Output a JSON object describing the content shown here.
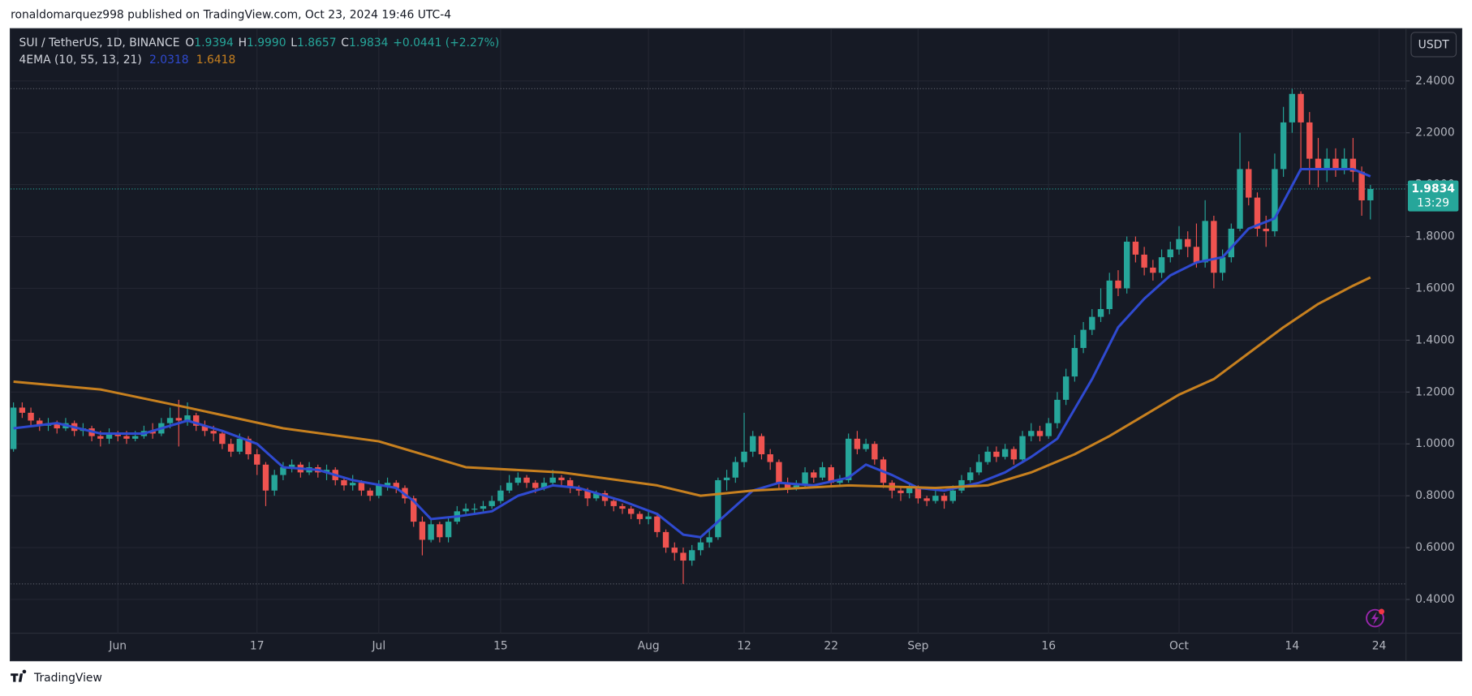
{
  "header": {
    "published": "ronaldomarquez998 published on TradingView.com, Oct 23, 2024 19:46 UTC-4"
  },
  "footer": {
    "brand": "TradingView"
  },
  "chart_data": {
    "type": "candlestick",
    "symbol": "SUI / TetherUS, 1D, BINANCE",
    "ohlc_legend": [
      {
        "key": "O",
        "value": "1.9394"
      },
      {
        "key": "H",
        "value": "1.9990"
      },
      {
        "key": "L",
        "value": "1.8657"
      },
      {
        "key": "C",
        "value": "1.9834"
      }
    ],
    "change": "+0.0441 (+2.27%)",
    "indicator": "4EMA (10, 55, 13, 21)",
    "currency": "USDT",
    "countdown": "13:29",
    "up_color": "#26a69a",
    "down_color": "#ef5350",
    "grid": true,
    "ylim": [
      0.27,
      2.6
    ],
    "yticks": [
      {
        "value": 0.4,
        "label": "0.4000"
      },
      {
        "value": 0.6,
        "label": "0.6000"
      },
      {
        "value": 0.8,
        "label": "0.8000"
      },
      {
        "value": 1.0,
        "label": "1.0000"
      },
      {
        "value": 1.2,
        "label": "1.2000"
      },
      {
        "value": 1.4,
        "label": "1.4000"
      },
      {
        "value": 1.6,
        "label": "1.6000"
      },
      {
        "value": 1.8,
        "label": "1.8000"
      },
      {
        "value": 2.0,
        "label": "2.0000"
      },
      {
        "value": 2.2,
        "label": "2.2000"
      },
      {
        "value": 2.4,
        "label": "2.4000"
      }
    ],
    "xticks": [
      {
        "value": "Jun 1",
        "label": "Jun"
      },
      {
        "value": "Jun 17",
        "label": "17"
      },
      {
        "value": "Jul 1",
        "label": "Jul"
      },
      {
        "value": "Jul 15",
        "label": "15"
      },
      {
        "value": "Aug 1",
        "label": "Aug"
      },
      {
        "value": "Aug 12",
        "label": "12"
      },
      {
        "value": "Aug 22",
        "label": "22"
      },
      {
        "value": "Sep 1",
        "label": "Sep"
      },
      {
        "value": "Sep 16",
        "label": "16"
      },
      {
        "value": "Oct 1",
        "label": "Oct"
      },
      {
        "value": "Oct 14",
        "label": "14"
      },
      {
        "value": "Oct 24",
        "label": "24"
      }
    ],
    "price_lines": [
      2.37,
      0.46
    ],
    "categories": [
      "May 20",
      "May 21",
      "May 22",
      "May 23",
      "May 24",
      "May 25",
      "May 26",
      "May 27",
      "May 28",
      "May 29",
      "May 30",
      "May 31",
      "Jun 1",
      "Jun 2",
      "Jun 3",
      "Jun 4",
      "Jun 5",
      "Jun 6",
      "Jun 7",
      "Jun 8",
      "Jun 9",
      "Jun 10",
      "Jun 11",
      "Jun 12",
      "Jun 13",
      "Jun 14",
      "Jun 15",
      "Jun 16",
      "Jun 17",
      "Jun 18",
      "Jun 19",
      "Jun 20",
      "Jun 21",
      "Jun 22",
      "Jun 23",
      "Jun 24",
      "Jun 25",
      "Jun 26",
      "Jun 27",
      "Jun 28",
      "Jun 29",
      "Jun 30",
      "Jul 1",
      "Jul 2",
      "Jul 3",
      "Jul 4",
      "Jul 5",
      "Jul 6",
      "Jul 7",
      "Jul 8",
      "Jul 9",
      "Jul 10",
      "Jul 11",
      "Jul 12",
      "Jul 13",
      "Jul 14",
      "Jul 15",
      "Jul 16",
      "Jul 17",
      "Jul 18",
      "Jul 19",
      "Jul 20",
      "Jul 21",
      "Jul 22",
      "Jul 23",
      "Jul 24",
      "Jul 25",
      "Jul 26",
      "Jul 27",
      "Jul 28",
      "Jul 29",
      "Jul 30",
      "Jul 31",
      "Aug 1",
      "Aug 2",
      "Aug 3",
      "Aug 4",
      "Aug 5",
      "Aug 6",
      "Aug 7",
      "Aug 8",
      "Aug 9",
      "Aug 10",
      "Aug 11",
      "Aug 12",
      "Aug 13",
      "Aug 14",
      "Aug 15",
      "Aug 16",
      "Aug 17",
      "Aug 18",
      "Aug 19",
      "Aug 20",
      "Aug 21",
      "Aug 22",
      "Aug 23",
      "Aug 24",
      "Aug 25",
      "Aug 26",
      "Aug 27",
      "Aug 28",
      "Aug 29",
      "Aug 30",
      "Aug 31",
      "Sep 1",
      "Sep 2",
      "Sep 3",
      "Sep 4",
      "Sep 5",
      "Sep 6",
      "Sep 7",
      "Sep 8",
      "Sep 9",
      "Sep 10",
      "Sep 11",
      "Sep 12",
      "Sep 13",
      "Sep 14",
      "Sep 15",
      "Sep 16",
      "Sep 17",
      "Sep 18",
      "Sep 19",
      "Sep 20",
      "Sep 21",
      "Sep 22",
      "Sep 23",
      "Sep 24",
      "Sep 25",
      "Sep 26",
      "Sep 27",
      "Sep 28",
      "Sep 29",
      "Sep 30",
      "Oct 1",
      "Oct 2",
      "Oct 3",
      "Oct 4",
      "Oct 5",
      "Oct 6",
      "Oct 7",
      "Oct 8",
      "Oct 9",
      "Oct 10",
      "Oct 11",
      "Oct 12",
      "Oct 13",
      "Oct 14",
      "Oct 15",
      "Oct 16",
      "Oct 17",
      "Oct 18",
      "Oct 19",
      "Oct 20",
      "Oct 21",
      "Oct 22",
      "Oct 23"
    ],
    "open": [
      0.98,
      1.14,
      1.12,
      1.09,
      1.07,
      1.08,
      1.06,
      1.08,
      1.05,
      1.06,
      1.03,
      1.02,
      1.04,
      1.03,
      1.02,
      1.03,
      1.05,
      1.04,
      1.08,
      1.1,
      1.09,
      1.11,
      1.07,
      1.05,
      1.04,
      1.0,
      0.97,
      1.02,
      0.96,
      0.92,
      0.82,
      0.88,
      0.91,
      0.92,
      0.89,
      0.91,
      0.89,
      0.9,
      0.86,
      0.84,
      0.85,
      0.82,
      0.8,
      0.84,
      0.85,
      0.83,
      0.79,
      0.7,
      0.63,
      0.69,
      0.64,
      0.7,
      0.74,
      0.75,
      0.75,
      0.76,
      0.78,
      0.82,
      0.85,
      0.87,
      0.85,
      0.83,
      0.85,
      0.87,
      0.86,
      0.83,
      0.82,
      0.79,
      0.81,
      0.78,
      0.76,
      0.75,
      0.73,
      0.71,
      0.72,
      0.66,
      0.6,
      0.58,
      0.55,
      0.59,
      0.62,
      0.64,
      0.86,
      0.87,
      0.93,
      0.97,
      1.03,
      0.96,
      0.93,
      0.85,
      0.83,
      0.84,
      0.89,
      0.87,
      0.91,
      0.85,
      0.86,
      1.02,
      0.98,
      1.0,
      0.94,
      0.85,
      0.82,
      0.81,
      0.83,
      0.79,
      0.78,
      0.8,
      0.78,
      0.82,
      0.86,
      0.89,
      0.93,
      0.97,
      0.95,
      0.98,
      0.94,
      1.03,
      1.05,
      1.03,
      1.08,
      1.17,
      1.26,
      1.37,
      1.44,
      1.49,
      1.52,
      1.63,
      1.6,
      1.78,
      1.73,
      1.68,
      1.66,
      1.72,
      1.75,
      1.79,
      1.76,
      1.7,
      1.86,
      1.66,
      1.72,
      1.83,
      2.06,
      1.95,
      1.83,
      1.82,
      2.06,
      2.24,
      2.35,
      2.24,
      2.1,
      2.06,
      2.1,
      2.06,
      2.1,
      2.05,
      1.9394
    ],
    "high": [
      1.16,
      1.16,
      1.14,
      1.1,
      1.1,
      1.09,
      1.1,
      1.09,
      1.08,
      1.07,
      1.05,
      1.06,
      1.05,
      1.05,
      1.05,
      1.07,
      1.08,
      1.1,
      1.14,
      1.17,
      1.16,
      1.12,
      1.09,
      1.07,
      1.05,
      1.02,
      1.04,
      1.03,
      0.98,
      0.93,
      0.9,
      0.93,
      0.94,
      0.93,
      0.93,
      0.92,
      0.92,
      0.91,
      0.87,
      0.88,
      0.86,
      0.83,
      0.86,
      0.87,
      0.86,
      0.84,
      0.8,
      0.72,
      0.71,
      0.7,
      0.72,
      0.76,
      0.77,
      0.77,
      0.78,
      0.8,
      0.84,
      0.88,
      0.89,
      0.88,
      0.86,
      0.87,
      0.9,
      0.88,
      0.87,
      0.84,
      0.83,
      0.82,
      0.82,
      0.79,
      0.77,
      0.76,
      0.74,
      0.74,
      0.73,
      0.67,
      0.62,
      0.6,
      0.61,
      0.64,
      0.67,
      0.87,
      0.9,
      0.95,
      1.12,
      1.05,
      1.04,
      0.98,
      0.94,
      0.87,
      0.86,
      0.91,
      0.9,
      0.93,
      0.92,
      0.88,
      1.04,
      1.05,
      1.02,
      1.01,
      0.95,
      0.86,
      0.83,
      0.85,
      0.84,
      0.8,
      0.82,
      0.81,
      0.84,
      0.88,
      0.91,
      0.96,
      0.99,
      0.99,
      1.0,
      0.99,
      1.05,
      1.08,
      1.07,
      1.1,
      1.2,
      1.29,
      1.42,
      1.47,
      1.52,
      1.6,
      1.66,
      1.67,
      1.8,
      1.8,
      1.76,
      1.71,
      1.75,
      1.78,
      1.84,
      1.82,
      1.85,
      1.94,
      1.88,
      1.75,
      1.85,
      2.2,
      2.09,
      1.97,
      1.88,
      2.12,
      2.3,
      2.37,
      2.36,
      2.28,
      2.18,
      2.14,
      2.14,
      2.14,
      2.18,
      2.07,
      1.999
    ],
    "low": [
      0.97,
      1.1,
      1.07,
      1.05,
      1.05,
      1.04,
      1.05,
      1.03,
      1.03,
      1.01,
      0.99,
      1.0,
      1.01,
      1.0,
      1.01,
      1.02,
      1.02,
      1.03,
      1.06,
      0.99,
      1.07,
      1.05,
      1.03,
      1.01,
      0.98,
      0.95,
      0.96,
      0.94,
      0.88,
      0.76,
      0.8,
      0.86,
      0.89,
      0.87,
      0.88,
      0.87,
      0.86,
      0.84,
      0.82,
      0.82,
      0.8,
      0.78,
      0.79,
      0.82,
      0.81,
      0.77,
      0.68,
      0.57,
      0.62,
      0.62,
      0.62,
      0.69,
      0.73,
      0.73,
      0.74,
      0.75,
      0.77,
      0.81,
      0.84,
      0.83,
      0.81,
      0.82,
      0.84,
      0.84,
      0.81,
      0.8,
      0.76,
      0.78,
      0.76,
      0.74,
      0.73,
      0.71,
      0.69,
      0.69,
      0.64,
      0.58,
      0.55,
      0.46,
      0.53,
      0.57,
      0.6,
      0.63,
      0.82,
      0.85,
      0.91,
      0.95,
      0.94,
      0.9,
      0.83,
      0.81,
      0.82,
      0.83,
      0.85,
      0.86,
      0.84,
      0.84,
      0.85,
      0.96,
      0.97,
      0.92,
      0.83,
      0.79,
      0.78,
      0.79,
      0.77,
      0.76,
      0.77,
      0.75,
      0.77,
      0.81,
      0.85,
      0.88,
      0.92,
      0.93,
      0.94,
      0.92,
      0.93,
      1.01,
      1.01,
      1.02,
      1.06,
      1.15,
      1.24,
      1.35,
      1.42,
      1.47,
      1.5,
      1.57,
      1.58,
      1.7,
      1.65,
      1.63,
      1.64,
      1.7,
      1.73,
      1.72,
      1.68,
      1.68,
      1.6,
      1.63,
      1.7,
      1.82,
      1.92,
      1.8,
      1.76,
      1.8,
      2.03,
      2.2,
      2.05,
      2.0,
      1.99,
      2.01,
      2.03,
      2.04,
      2.01,
      1.88,
      1.8657
    ],
    "close": [
      1.14,
      1.12,
      1.09,
      1.07,
      1.08,
      1.06,
      1.08,
      1.05,
      1.06,
      1.03,
      1.02,
      1.04,
      1.03,
      1.02,
      1.03,
      1.05,
      1.04,
      1.08,
      1.1,
      1.09,
      1.11,
      1.07,
      1.05,
      1.04,
      1.0,
      0.97,
      1.02,
      0.96,
      0.92,
      0.82,
      0.88,
      0.91,
      0.92,
      0.89,
      0.91,
      0.89,
      0.9,
      0.86,
      0.84,
      0.85,
      0.82,
      0.8,
      0.84,
      0.85,
      0.83,
      0.79,
      0.7,
      0.63,
      0.69,
      0.64,
      0.7,
      0.74,
      0.75,
      0.75,
      0.76,
      0.78,
      0.82,
      0.85,
      0.87,
      0.85,
      0.83,
      0.85,
      0.87,
      0.86,
      0.83,
      0.82,
      0.79,
      0.81,
      0.78,
      0.76,
      0.75,
      0.73,
      0.71,
      0.72,
      0.66,
      0.6,
      0.58,
      0.55,
      0.59,
      0.62,
      0.64,
      0.86,
      0.87,
      0.93,
      0.97,
      1.03,
      0.96,
      0.93,
      0.85,
      0.83,
      0.84,
      0.89,
      0.87,
      0.91,
      0.85,
      0.86,
      1.02,
      0.98,
      1.0,
      0.94,
      0.85,
      0.82,
      0.81,
      0.83,
      0.79,
      0.78,
      0.8,
      0.78,
      0.82,
      0.86,
      0.89,
      0.93,
      0.97,
      0.95,
      0.98,
      0.94,
      1.03,
      1.05,
      1.03,
      1.08,
      1.17,
      1.26,
      1.37,
      1.44,
      1.49,
      1.52,
      1.63,
      1.6,
      1.78,
      1.73,
      1.68,
      1.66,
      1.72,
      1.75,
      1.79,
      1.76,
      1.7,
      1.86,
      1.66,
      1.72,
      1.83,
      2.06,
      1.95,
      1.83,
      1.82,
      2.06,
      2.24,
      2.35,
      2.24,
      2.1,
      2.06,
      2.1,
      2.06,
      2.1,
      2.05,
      1.9394,
      1.9834
    ],
    "ema": [
      {
        "color": "#2f4ad0",
        "x": [
          "May 20",
          "May 25",
          "May 30",
          "Jun 4",
          "Jun 9",
          "Jun 13",
          "Jun 17",
          "Jun 20",
          "Jun 24",
          "Jun 28",
          "Jul 3",
          "Jul 5",
          "Jul 7",
          "Jul 10",
          "Jul 14",
          "Jul 17",
          "Jul 21",
          "Jul 24",
          "Jul 29",
          "Aug 2",
          "Aug 5",
          "Aug 7",
          "Aug 10",
          "Aug 13",
          "Aug 16",
          "Aug 20",
          "Aug 24",
          "Aug 26",
          "Aug 29",
          "Sep 1",
          "Sep 4",
          "Sep 8",
          "Sep 11",
          "Sep 14",
          "Sep 17",
          "Sep 21",
          "Sep 24",
          "Sep 27",
          "Sep 30",
          "Oct 3",
          "Oct 6",
          "Oct 9",
          "Oct 12",
          "Oct 15",
          "Oct 18",
          "Oct 21",
          "Oct 23"
        ],
        "values": [
          1.06,
          1.08,
          1.04,
          1.04,
          1.09,
          1.05,
          1.0,
          0.91,
          0.9,
          0.86,
          0.83,
          0.78,
          0.71,
          0.72,
          0.74,
          0.8,
          0.84,
          0.83,
          0.78,
          0.73,
          0.65,
          0.64,
          0.73,
          0.82,
          0.85,
          0.84,
          0.87,
          0.92,
          0.88,
          0.83,
          0.82,
          0.85,
          0.89,
          0.95,
          1.02,
          1.25,
          1.45,
          1.56,
          1.65,
          1.7,
          1.72,
          1.83,
          1.87,
          2.06,
          2.06,
          2.06,
          2.0318
        ]
      },
      {
        "color": "#c7801f",
        "x": [
          "May 20",
          "May 30",
          "Jun 9",
          "Jun 20",
          "Jul 1",
          "Jul 11",
          "Jul 22",
          "Aug 2",
          "Aug 7",
          "Aug 13",
          "Aug 24",
          "Sep 3",
          "Sep 9",
          "Sep 14",
          "Sep 19",
          "Sep 23",
          "Sep 27",
          "Oct 1",
          "Oct 5",
          "Oct 9",
          "Oct 13",
          "Oct 17",
          "Oct 21",
          "Oct 23"
        ],
        "values": [
          1.24,
          1.21,
          1.14,
          1.06,
          1.01,
          0.91,
          0.89,
          0.84,
          0.8,
          0.82,
          0.84,
          0.83,
          0.84,
          0.89,
          0.96,
          1.03,
          1.11,
          1.19,
          1.25,
          1.35,
          1.45,
          1.54,
          1.61,
          1.6418
        ]
      }
    ]
  }
}
